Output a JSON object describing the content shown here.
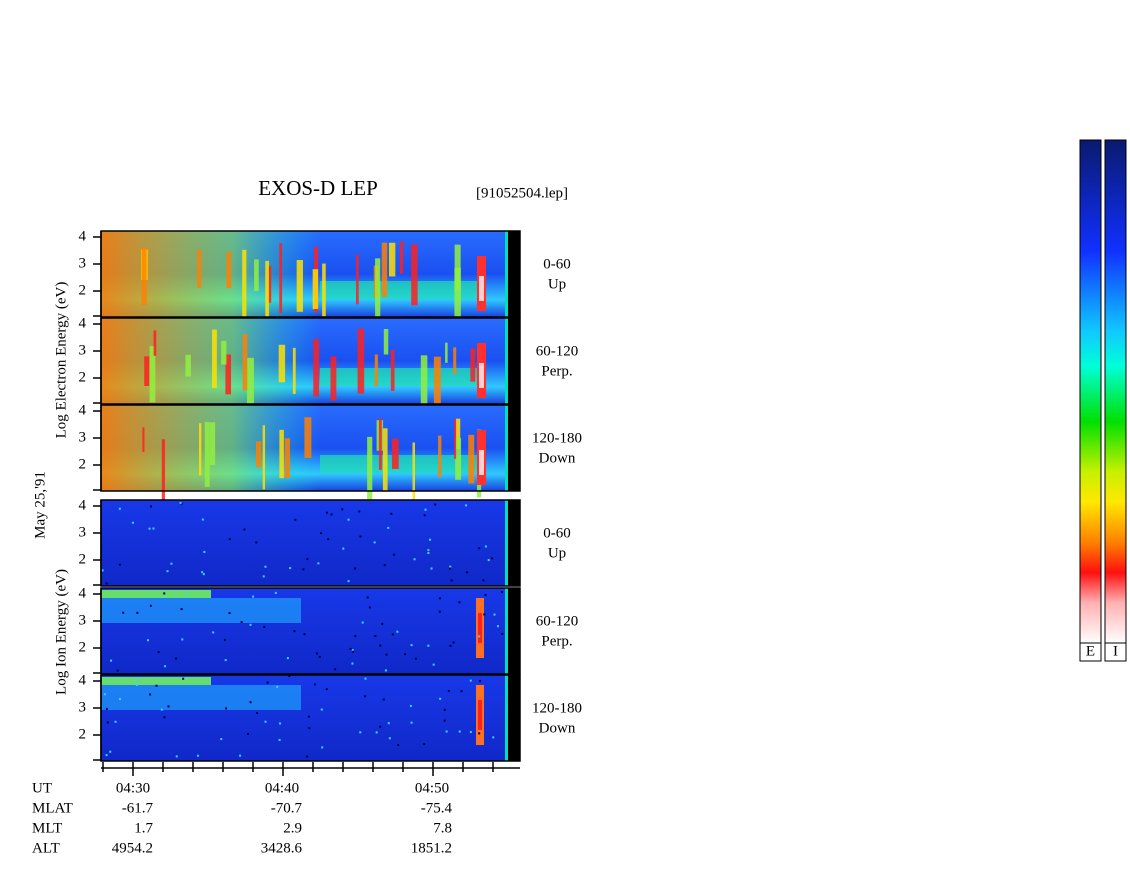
{
  "title": "EXOS-D LEP",
  "file": "[91052504.lep]",
  "date": "May 25,'91",
  "electron_axis_label": "Log Electron Energy (eV)",
  "ion_axis_label": "Log Ion Energy (eV)",
  "panels": [
    {
      "ticks": [
        "4",
        "3",
        "2"
      ],
      "pitch_angle": "0-60",
      "direction": "Up"
    },
    {
      "ticks": [
        "4",
        "3",
        "2"
      ],
      "pitch_angle": "60-120",
      "direction": "Perp."
    },
    {
      "ticks": [
        "4",
        "3",
        "2"
      ],
      "pitch_angle": "120-180",
      "direction": "Down"
    },
    {
      "ticks": [
        "4",
        "3",
        "2"
      ],
      "pitch_angle": "0-60",
      "direction": "Up"
    },
    {
      "ticks": [
        "4",
        "3",
        "2"
      ],
      "pitch_angle": "60-120",
      "direction": "Perp."
    },
    {
      "ticks": [
        "4",
        "3",
        "2"
      ],
      "pitch_angle": "120-180",
      "direction": "Down"
    }
  ],
  "orbit": {
    "labels": [
      "UT",
      "MLAT",
      "MLT",
      "ALT"
    ],
    "ut": [
      "04:30",
      "04:40",
      "04:50"
    ],
    "mlat": [
      "-61.7",
      "-70.7",
      "-75.4"
    ],
    "mlt": [
      "1.7",
      "2.9",
      "7.8"
    ],
    "alt": [
      "4954.2",
      "3428.6",
      "1851.2"
    ]
  },
  "colorbars": [
    "E",
    "I"
  ]
}
